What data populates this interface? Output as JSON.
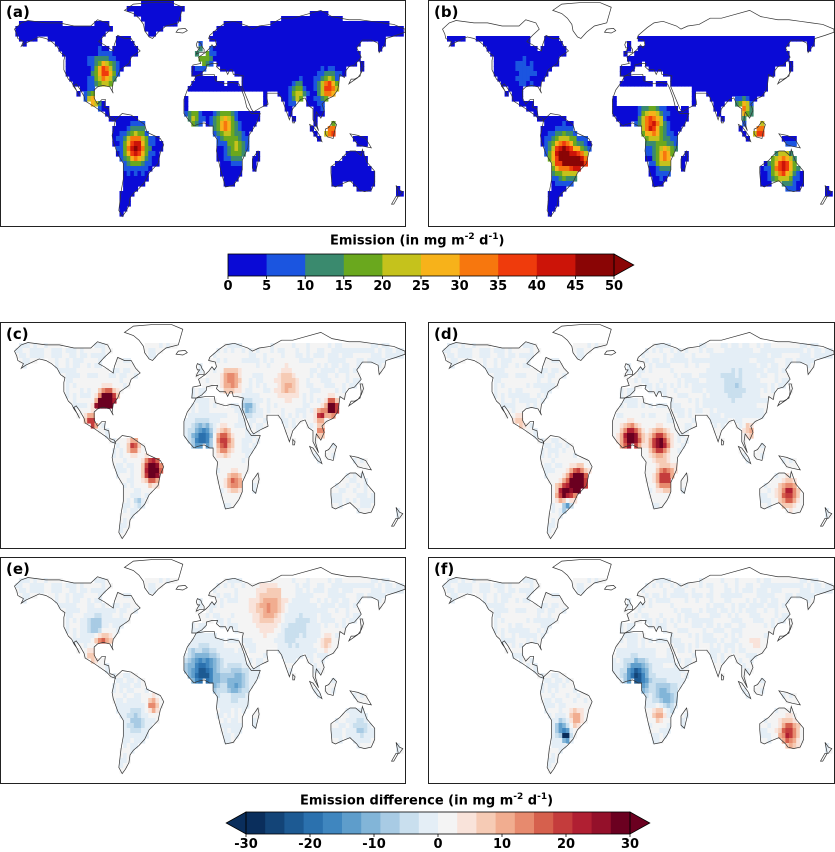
{
  "panels": [
    {
      "label": "(a)",
      "kind": "emission",
      "scheme": "a"
    },
    {
      "label": "(b)",
      "kind": "emission",
      "scheme": "b"
    },
    {
      "label": "(c)",
      "kind": "difference",
      "scheme": "c"
    },
    {
      "label": "(d)",
      "kind": "difference",
      "scheme": "d"
    },
    {
      "label": "(e)",
      "kind": "difference",
      "scheme": "e"
    },
    {
      "label": "(f)",
      "kind": "difference",
      "scheme": "f"
    }
  ],
  "colorbar_top": {
    "title_main": "Emission (in mg m",
    "title_exp1": "-2",
    "title_mid": " d",
    "title_exp2": "-1",
    "title_end": ")",
    "ticks": [
      "0",
      "5",
      "10",
      "15",
      "20",
      "25",
      "30",
      "35",
      "40",
      "45",
      "50"
    ],
    "colors": [
      "#0a0ad6",
      "#1b55e0",
      "#3a8a6e",
      "#6aa81e",
      "#c5c21c",
      "#f7b21a",
      "#f7770e",
      "#ef3b0c",
      "#cc1408",
      "#8a0505"
    ],
    "extend": "max"
  },
  "colorbar_bottom": {
    "title_main": "Emission difference (in mg m",
    "title_exp1": "-2",
    "title_mid": " d",
    "title_exp2": "-1",
    "title_end": ")",
    "ticks": [
      "-30",
      "-20",
      "-10",
      "0",
      "10",
      "20",
      "30"
    ],
    "colors": [
      "#0a2e5c",
      "#134477",
      "#1d5a93",
      "#2b71ae",
      "#3f86bf",
      "#5e9dcb",
      "#82b5d8",
      "#a8cbe4",
      "#c9dfee",
      "#e4eef6",
      "#f4f4f4",
      "#f9e3da",
      "#f6cbb5",
      "#f1ad90",
      "#e78a6e",
      "#d6604d",
      "#c43c3c",
      "#b01f32",
      "#94102a",
      "#6b0020"
    ],
    "extend": "both"
  },
  "chart_data": [
    {
      "type": "heatmap",
      "title": "(a)",
      "colorbar": "Emission",
      "vmin": 0,
      "vmax": 50
    },
    {
      "type": "heatmap",
      "title": "(b)",
      "colorbar": "Emission",
      "vmin": 0,
      "vmax": 50
    },
    {
      "type": "heatmap",
      "title": "(c)",
      "colorbar": "Emission difference",
      "vmin": -30,
      "vmax": 30
    },
    {
      "type": "heatmap",
      "title": "(d)",
      "colorbar": "Emission difference",
      "vmin": -30,
      "vmax": 30
    },
    {
      "type": "heatmap",
      "title": "(e)",
      "colorbar": "Emission difference",
      "vmin": -30,
      "vmax": 30
    },
    {
      "type": "heatmap",
      "title": "(f)",
      "colorbar": "Emission difference",
      "vmin": -30,
      "vmax": 30
    }
  ]
}
